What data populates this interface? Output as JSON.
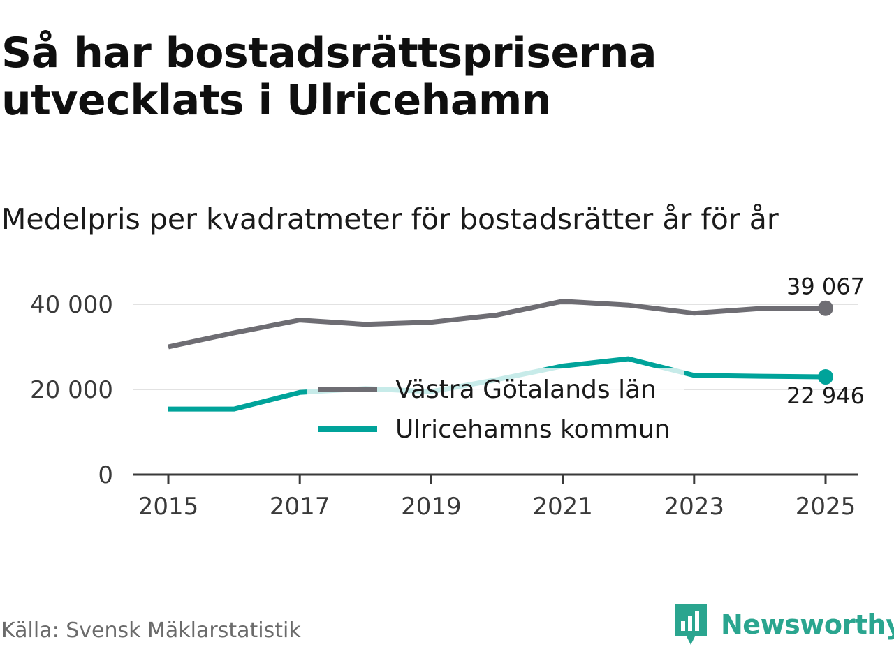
{
  "header": {
    "title": "Så har bostadsrättspriserna utvecklats i Ulricehamn",
    "subtitle": "Medelpris per kvadratmeter för bostadsrätter år för år"
  },
  "footer": {
    "source": "Källa: Svensk Mäklarstatistik",
    "brand": "Newsworthy"
  },
  "colors": {
    "series_gray": "#6e6d73",
    "series_teal": "#00a39a",
    "gridline": "#e2e2e2",
    "axis": "#3a3a3a",
    "brand": "#2aa58f"
  },
  "chart_data": {
    "type": "line",
    "title": "Medelpris per kvadratmeter för bostadsrätter år för år",
    "xlabel": "",
    "ylabel": "",
    "x": [
      2015,
      2016,
      2017,
      2018,
      2019,
      2020,
      2021,
      2022,
      2023,
      2024,
      2025
    ],
    "xticks": [
      "2015",
      "2017",
      "2019",
      "2021",
      "2023",
      "2025"
    ],
    "ylim": [
      0,
      40000
    ],
    "yticks": [
      0,
      20000,
      40000
    ],
    "ytick_labels": [
      "0",
      "20 000",
      "40 000"
    ],
    "grid": true,
    "legend": "center",
    "series": [
      {
        "name": "Västra Götalands län",
        "color": "#6e6d73",
        "values": [
          30000,
          33300,
          36300,
          35300,
          35800,
          37500,
          40700,
          39800,
          37900,
          39000,
          39067
        ],
        "end_label": "39 067"
      },
      {
        "name": "Ulricehamns kommun",
        "color": "#00a39a",
        "values": [
          15400,
          15400,
          19300,
          20200,
          19500,
          22300,
          25500,
          27200,
          23300,
          23100,
          22946
        ],
        "end_label": "22 946"
      }
    ]
  }
}
